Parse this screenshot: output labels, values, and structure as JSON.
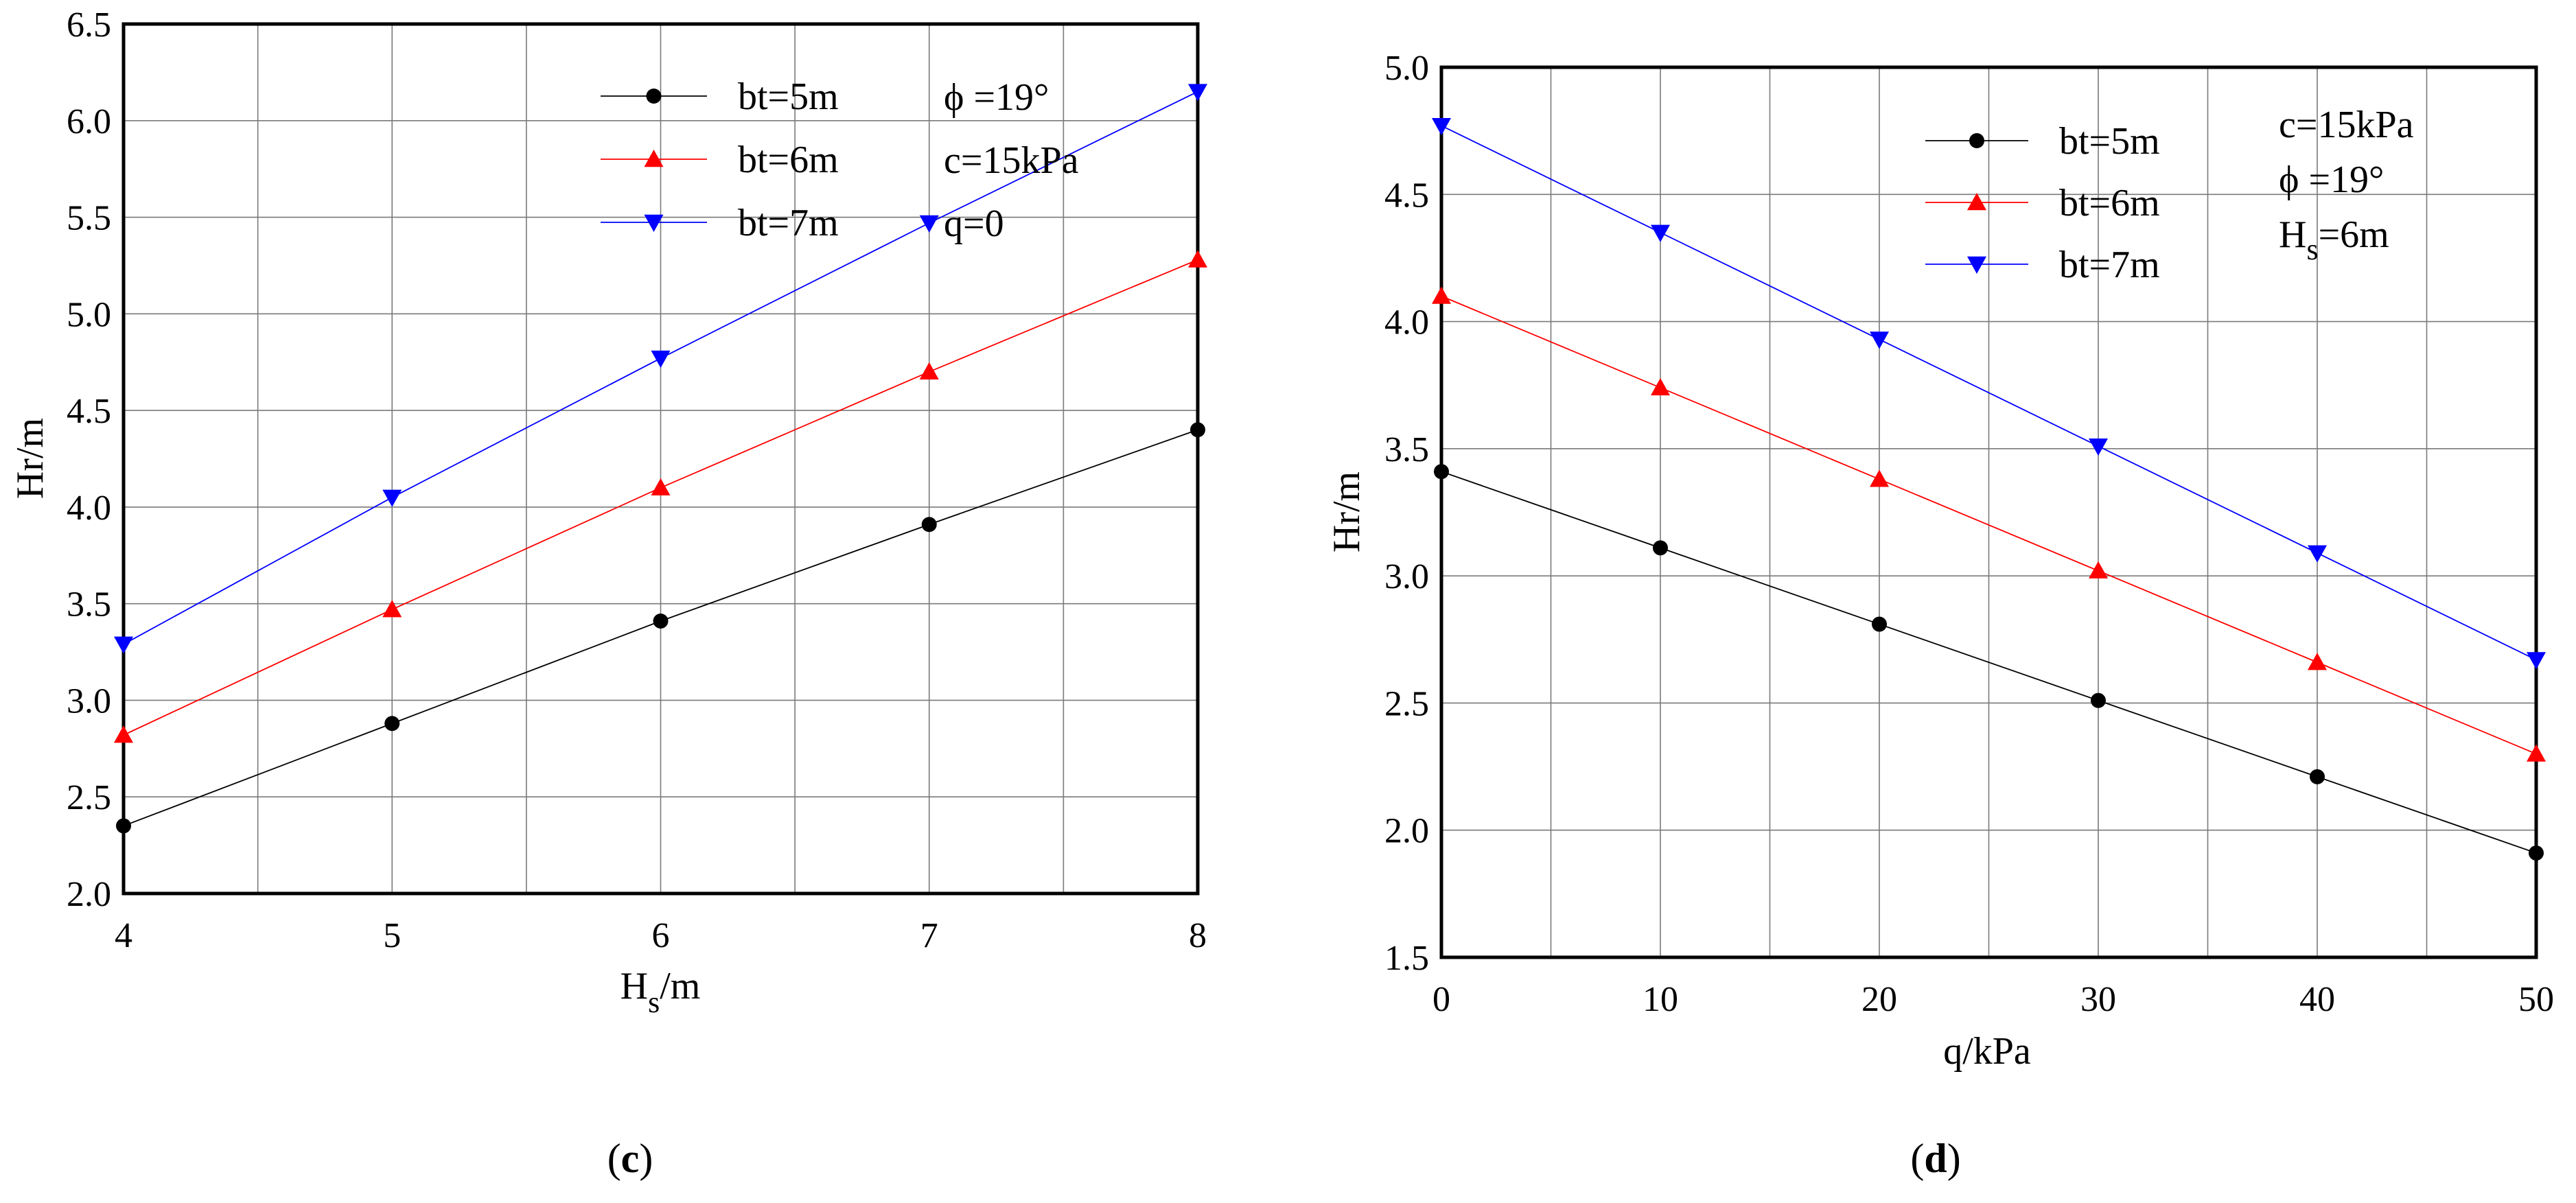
{
  "chart_data": [
    {
      "type": "line",
      "panel_label": "c",
      "xlabel": "H",
      "xlabel_sub": "s",
      "xlabel_unit": "/m",
      "ylabel": "Hr/m",
      "x": [
        4,
        5,
        6,
        7,
        8
      ],
      "xlim": [
        4,
        8
      ],
      "ylim": [
        2.0,
        6.5
      ],
      "x_ticks": [
        4,
        5,
        6,
        7,
        8
      ],
      "y_ticks": [
        2.0,
        2.5,
        3.0,
        3.5,
        4.0,
        4.5,
        5.0,
        5.5,
        6.0,
        6.5
      ],
      "x_minor_grid": true,
      "grid": true,
      "legend_position": "top-center",
      "series": [
        {
          "name": "bt=5m",
          "color": "#000000",
          "marker": "circle",
          "values": [
            2.35,
            2.88,
            3.41,
            3.91,
            4.4
          ]
        },
        {
          "name": "bt=6m",
          "color": "#ff0000",
          "marker": "triangle-up",
          "values": [
            2.82,
            3.47,
            4.1,
            4.7,
            5.28
          ]
        },
        {
          "name": "bt=7m",
          "color": "#0000ff",
          "marker": "triangle-down",
          "values": [
            3.29,
            4.05,
            4.77,
            5.47,
            6.15
          ]
        }
      ],
      "annotations": [
        "ϕ =19°",
        "c=15kPa",
        "q=0"
      ]
    },
    {
      "type": "line",
      "panel_label": "d",
      "xlabel": "q/kPa",
      "ylabel": "Hr/m",
      "x": [
        0,
        10,
        20,
        30,
        40,
        50
      ],
      "xlim": [
        0,
        50
      ],
      "ylim": [
        1.5,
        5.0
      ],
      "x_ticks": [
        0,
        10,
        20,
        30,
        40,
        50
      ],
      "y_ticks": [
        1.5,
        2.0,
        2.5,
        3.0,
        3.5,
        4.0,
        4.5,
        5.0
      ],
      "x_minor_grid": true,
      "grid": true,
      "legend_position": "top-center",
      "series": [
        {
          "name": "bt=5m",
          "color": "#000000",
          "marker": "circle",
          "values": [
            3.41,
            3.11,
            2.81,
            2.51,
            2.21,
            1.91
          ]
        },
        {
          "name": "bt=6m",
          "color": "#ff0000",
          "marker": "triangle-up",
          "values": [
            4.1,
            3.74,
            3.38,
            3.02,
            2.66,
            2.3
          ]
        },
        {
          "name": "bt=7m",
          "color": "#0000ff",
          "marker": "triangle-down",
          "values": [
            4.77,
            4.35,
            3.93,
            3.51,
            3.09,
            2.67
          ]
        }
      ],
      "annotations": [
        "c=15kPa",
        "ϕ =19°"
      ],
      "annotation_hs": {
        "main": "H",
        "sub": "s",
        "rest": "=6m"
      }
    }
  ]
}
